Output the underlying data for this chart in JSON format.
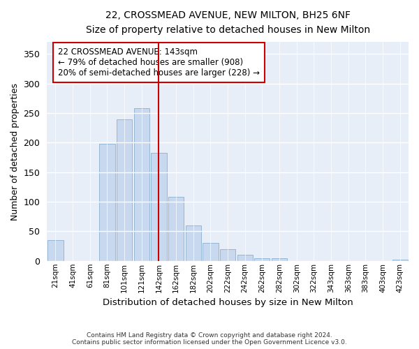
{
  "title1": "22, CROSSMEAD AVENUE, NEW MILTON, BH25 6NF",
  "title2": "Size of property relative to detached houses in New Milton",
  "xlabel": "Distribution of detached houses by size in New Milton",
  "ylabel": "Number of detached properties",
  "annotation_line1": "22 CROSSMEAD AVENUE: 143sqm",
  "annotation_line2": "← 79% of detached houses are smaller (908)",
  "annotation_line3": "20% of semi-detached houses are larger (228) →",
  "categories": [
    "21sqm",
    "41sqm",
    "61sqm",
    "81sqm",
    "101sqm",
    "121sqm",
    "142sqm",
    "162sqm",
    "182sqm",
    "202sqm",
    "222sqm",
    "242sqm",
    "262sqm",
    "282sqm",
    "302sqm",
    "322sqm",
    "343sqm",
    "363sqm",
    "383sqm",
    "403sqm",
    "423sqm"
  ],
  "values": [
    35,
    0,
    0,
    198,
    240,
    258,
    183,
    108,
    60,
    30,
    20,
    10,
    5,
    5,
    0,
    0,
    0,
    0,
    0,
    0,
    2
  ],
  "bar_color": "#c8d8ee",
  "bar_edge_color": "#8ab0d0",
  "vline_x_index": 6,
  "vline_color": "#cc0000",
  "annotation_box_color": "#ffffff",
  "annotation_box_edge": "#cc0000",
  "ylim": [
    0,
    370
  ],
  "yticks": [
    0,
    50,
    100,
    150,
    200,
    250,
    300,
    350
  ],
  "footer1": "Contains HM Land Registry data © Crown copyright and database right 2024.",
  "footer2": "Contains public sector information licensed under the Open Government Licence v3.0.",
  "bg_color": "#ffffff",
  "plot_bg_color": "#e8eef8"
}
